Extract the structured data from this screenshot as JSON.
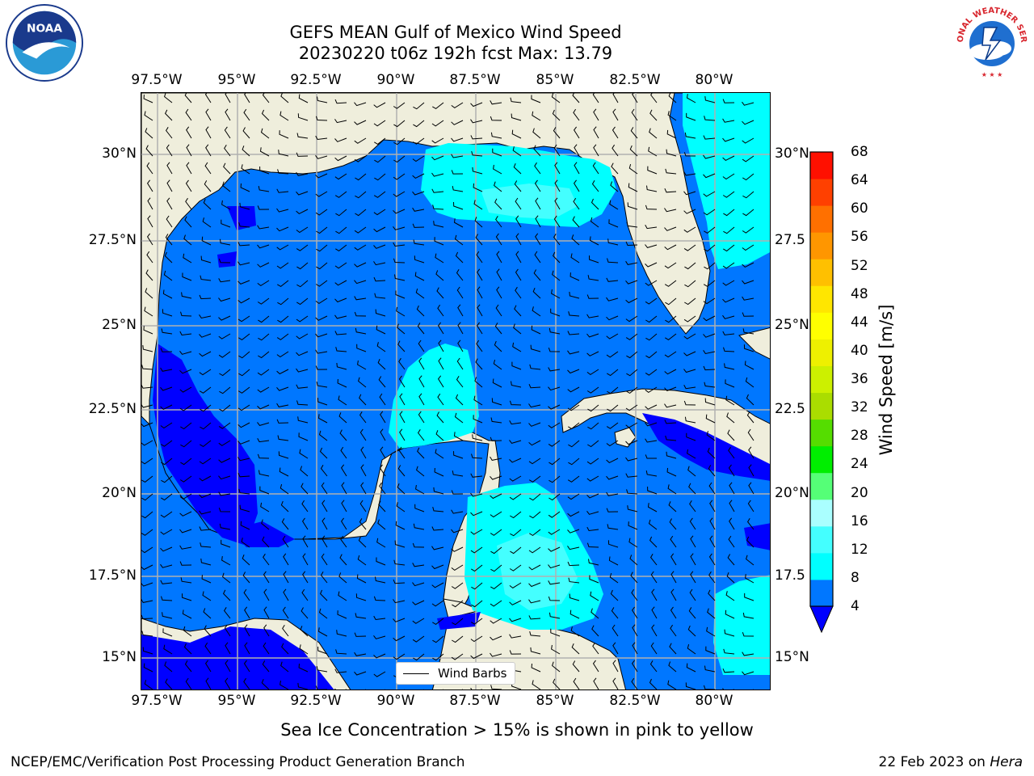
{
  "title_line1": "GEFS MEAN Gulf of Mexico Wind Speed",
  "title_line2": "20230220 t06z 192h fcst   Max: 13.79",
  "lon_ticks": [
    "97.5°W",
    "95°W",
    "92.5°W",
    "90°W",
    "87.5°W",
    "85°W",
    "82.5°W",
    "80°W"
  ],
  "lat_ticks": [
    "30°N",
    "27.5°N",
    "25°N",
    "22.5°N",
    "20°N",
    "17.5°N",
    "15°N"
  ],
  "lat_ticks_right": [
    "30°N",
    "27.5",
    "25°N",
    "22.5",
    "20°N",
    "17.5",
    "15°N"
  ],
  "legend_label": "Wind Barbs",
  "colorbar": {
    "label": "Wind Speed [m/s]",
    "ticks": [
      "68",
      "64",
      "60",
      "56",
      "52",
      "48",
      "44",
      "40",
      "36",
      "32",
      "28",
      "24",
      "20",
      "16",
      "12",
      "8",
      "4"
    ],
    "colors": [
      "#0000ff",
      "#0077ff",
      "#00ffff",
      "#44ffff",
      "#aaffff",
      "#55ff77",
      "#00ee00",
      "#55dd00",
      "#aadd00",
      "#ccf000",
      "#eef000",
      "#ffff00",
      "#ffe600",
      "#ffc000",
      "#ff9600",
      "#ff7000",
      "#ff4000",
      "#ff1000"
    ]
  },
  "colors": {
    "land": "#efeedc",
    "water_4_8": "#0077ff",
    "water_8_12": "#00ffff",
    "water_12_16": "#44ffff",
    "water_lt_4": "#0000ff",
    "grid": "#b0b0b0"
  },
  "note": "Sea Ice Concentration > 15% is shown in pink to yellow",
  "footer_org": "NCEP/EMC/Verification Post Processing Product Generation Branch",
  "footer_date": "22 Feb 2023 on ",
  "footer_host": "Hera",
  "logos": {
    "noaa_text": "NOAA",
    "nws_text": "NATIONAL WEATHER SERVICE"
  }
}
